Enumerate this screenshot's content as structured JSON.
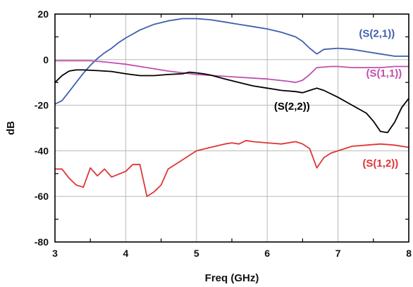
{
  "chart_data": {
    "type": "line",
    "xlabel": "Freq (GHz)",
    "ylabel": "dB",
    "xlim": [
      3,
      8
    ],
    "ylim": [
      -80,
      20
    ],
    "x_ticks": [
      3,
      4,
      5,
      6,
      7,
      8
    ],
    "y_ticks": [
      20,
      0,
      -20,
      -40,
      -60,
      -80
    ],
    "grid": true,
    "series": [
      {
        "name": "(S(2,1))",
        "color": "#3f5fae",
        "label_at": [
          7.55,
          11.5
        ],
        "x": [
          3.0,
          3.1,
          3.2,
          3.3,
          3.4,
          3.5,
          3.6,
          3.7,
          3.8,
          3.9,
          4.0,
          4.2,
          4.4,
          4.6,
          4.8,
          5.0,
          5.2,
          5.4,
          5.6,
          5.8,
          6.0,
          6.2,
          6.4,
          6.5,
          6.6,
          6.7,
          6.8,
          7.0,
          7.2,
          7.4,
          7.6,
          7.8,
          8.0
        ],
        "y": [
          -19.5,
          -18,
          -14,
          -10,
          -6,
          -2.5,
          0.5,
          3,
          5,
          7.5,
          9.5,
          13,
          15.5,
          17,
          18,
          18,
          17.5,
          16.5,
          15.5,
          14.5,
          13.5,
          12,
          10,
          8,
          5,
          2.5,
          4.5,
          5,
          4.5,
          3.5,
          2.5,
          1.5,
          1.5
        ]
      },
      {
        "name": "(S(1,1))",
        "color": "#c04fae",
        "label_at": [
          7.65,
          -6
        ],
        "x": [
          3.0,
          3.3,
          3.5,
          3.7,
          4.0,
          4.3,
          4.6,
          5.0,
          5.5,
          6.0,
          6.3,
          6.4,
          6.5,
          6.6,
          6.7,
          6.9,
          7.0,
          7.2,
          7.4,
          7.6,
          7.8,
          8.0
        ],
        "y": [
          -0.5,
          -0.5,
          -0.5,
          -1,
          -2,
          -3.5,
          -5,
          -6.5,
          -7.5,
          -8.5,
          -9.5,
          -10,
          -9,
          -6.5,
          -3.5,
          -3,
          -3,
          -3.5,
          -3.5,
          -3.5,
          -3,
          -3
        ]
      },
      {
        "name": "(S(2,2))",
        "color": "#000000",
        "label_at": [
          6.35,
          -20.5
        ],
        "x": [
          3.0,
          3.1,
          3.2,
          3.3,
          3.4,
          3.6,
          3.8,
          4.0,
          4.2,
          4.4,
          4.6,
          4.8,
          4.9,
          5.0,
          5.1,
          5.2,
          5.4,
          5.6,
          5.8,
          6.0,
          6.2,
          6.4,
          6.5,
          6.6,
          6.7,
          6.8,
          7.0,
          7.2,
          7.4,
          7.5,
          7.6,
          7.7,
          7.8,
          7.9,
          8.0
        ],
        "y": [
          -10,
          -7,
          -5,
          -4.5,
          -4.5,
          -4.8,
          -5.2,
          -6.2,
          -7,
          -7,
          -6.5,
          -6.2,
          -5.5,
          -5.8,
          -6.2,
          -6.8,
          -8.5,
          -10,
          -11.5,
          -12.5,
          -13.5,
          -14,
          -14.5,
          -13.5,
          -12.5,
          -13.5,
          -16.5,
          -20,
          -23.5,
          -27,
          -31.5,
          -32,
          -27.5,
          -21,
          -17
        ]
      },
      {
        "name": "(S(1,2))",
        "color": "#e03535",
        "label_at": [
          7.6,
          -45.5
        ],
        "x": [
          3.0,
          3.1,
          3.2,
          3.3,
          3.4,
          3.5,
          3.6,
          3.7,
          3.8,
          4.0,
          4.1,
          4.2,
          4.3,
          4.4,
          4.5,
          4.6,
          4.8,
          5.0,
          5.2,
          5.4,
          5.5,
          5.6,
          5.7,
          5.8,
          6.0,
          6.2,
          6.4,
          6.5,
          6.6,
          6.7,
          6.8,
          6.9,
          7.0,
          7.2,
          7.4,
          7.6,
          7.8,
          8.0
        ],
        "y": [
          -48,
          -48,
          -52,
          -55,
          -56,
          -47.5,
          -51,
          -48,
          -51.5,
          -49,
          -46,
          -46,
          -60,
          -58,
          -55,
          -48,
          -44,
          -40,
          -38.5,
          -37,
          -36.5,
          -37,
          -35.5,
          -36,
          -36.5,
          -37,
          -36,
          -37,
          -39,
          -47.5,
          -43,
          -41,
          -40,
          -38,
          -37.5,
          -37,
          -37.5,
          -38.5
        ]
      }
    ]
  }
}
